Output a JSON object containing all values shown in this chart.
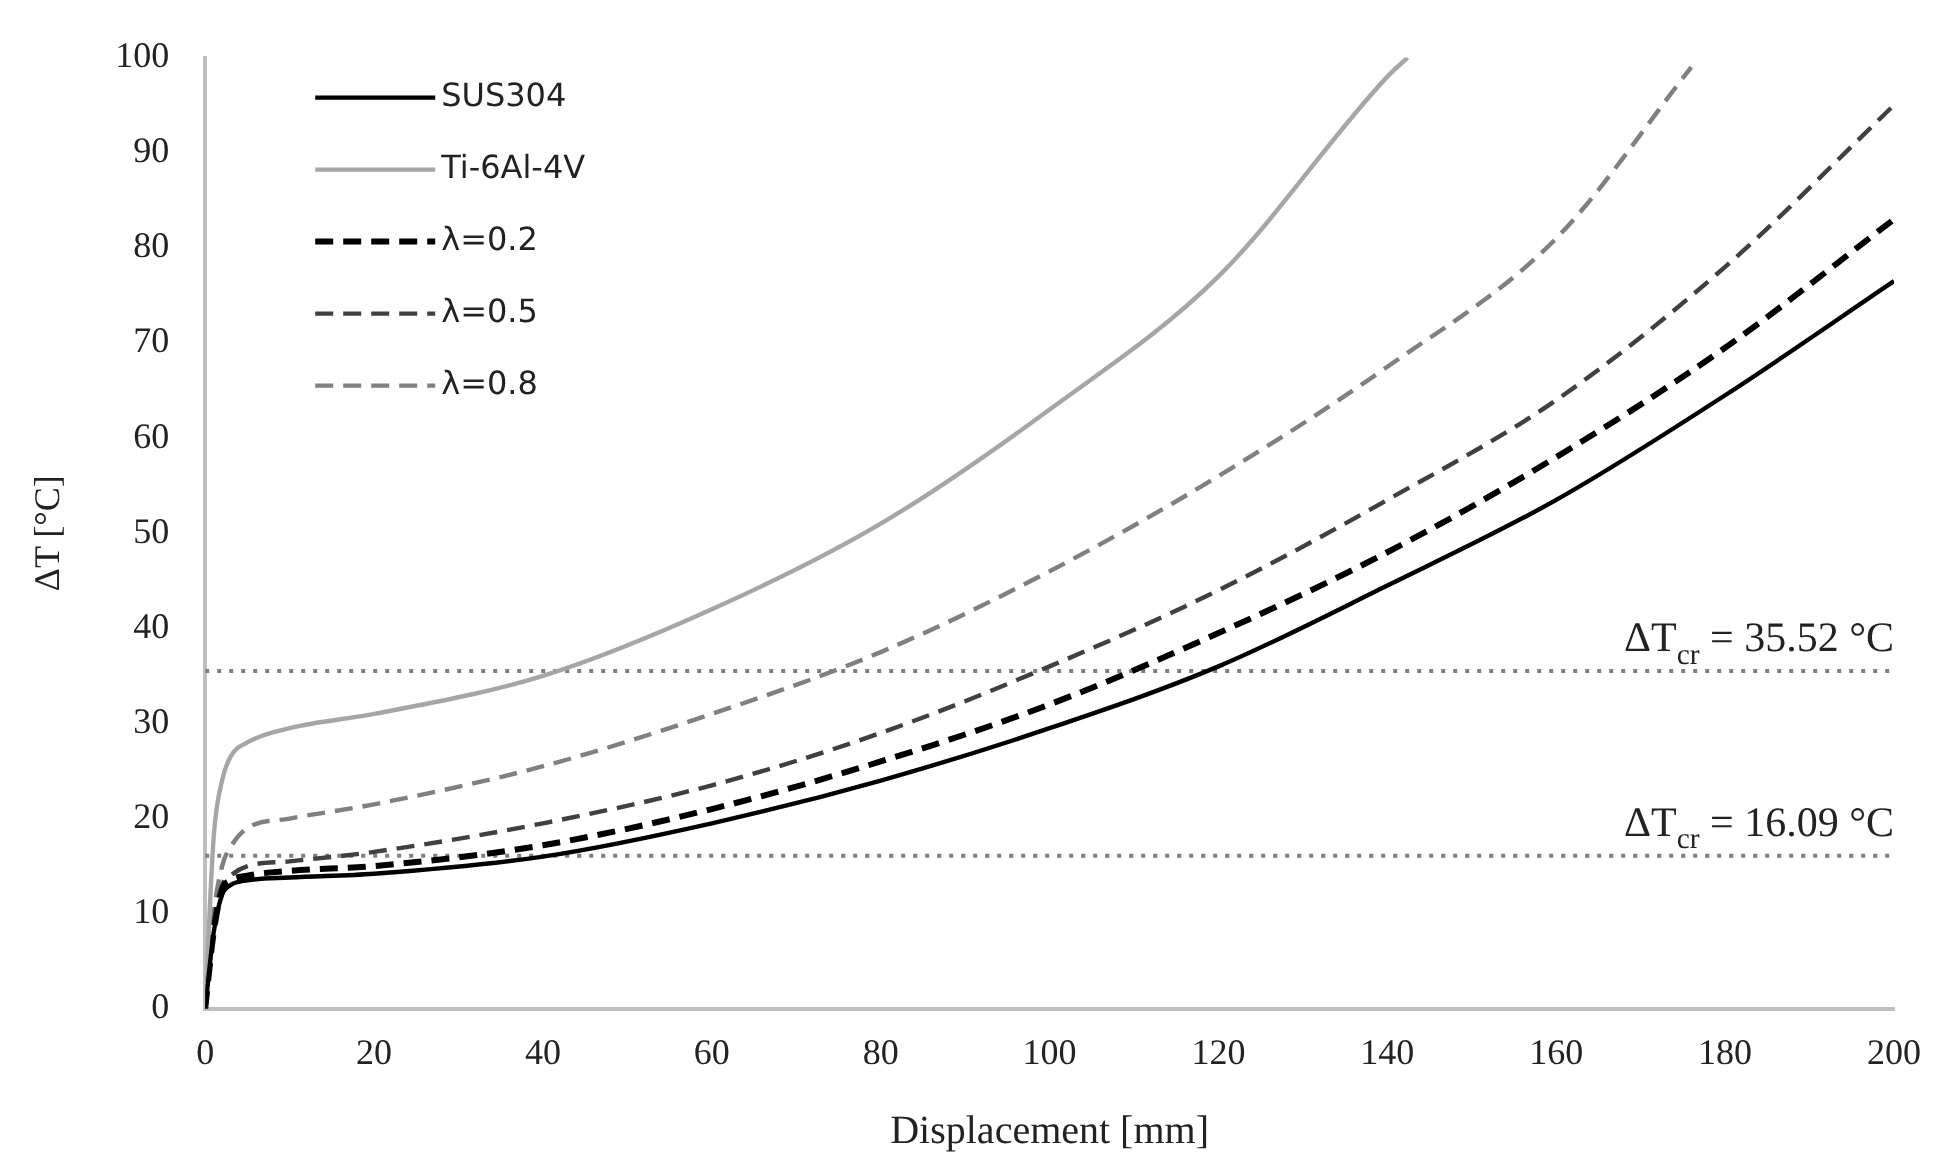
{
  "chart_data": {
    "type": "line",
    "xlabel": "Displacement [mm]",
    "ylabel": "ΔT [°C]",
    "xlim": [
      0,
      200
    ],
    "xticks": [
      0,
      20,
      40,
      60,
      80,
      100,
      120,
      140,
      160,
      180,
      200
    ],
    "ylim": [
      0,
      100
    ],
    "yticks": [
      0,
      10,
      20,
      30,
      40,
      50,
      60,
      70,
      80,
      90,
      100
    ],
    "grid": false,
    "legend": "top left",
    "marker": "none",
    "series": [
      {
        "name": "SUS304",
        "color": "#000000",
        "line_style": "solid",
        "x": [
          0,
          1,
          2,
          3,
          5,
          10,
          20,
          40,
          60,
          80,
          100,
          120,
          140,
          160,
          180,
          200
        ],
        "values": [
          0,
          8,
          12,
          13,
          13.5,
          13.8,
          14.2,
          16,
          19.5,
          24,
          29.5,
          36,
          44.5,
          53.5,
          64.5,
          76.5
        ]
      },
      {
        "name": "Ti-6Al-4V",
        "color": "#a6a6a6",
        "line_style": "solid",
        "x": [
          0,
          1,
          2,
          3,
          5,
          10,
          20,
          40,
          60,
          80,
          100,
          120,
          140,
          142.4
        ],
        "values": [
          0,
          18,
          24,
          26.5,
          28,
          29.5,
          31,
          35,
          42,
          51,
          63,
          77,
          98,
          100
        ]
      },
      {
        "name": "λ=0.2",
        "color": "#000000",
        "line_style": "dashed",
        "x": [
          0,
          1,
          2,
          3,
          5,
          10,
          20,
          40,
          60,
          80,
          100,
          120,
          140,
          160,
          180,
          200
        ],
        "values": [
          0,
          8,
          12.5,
          13.5,
          14,
          14.5,
          15,
          17.2,
          21,
          26,
          32,
          39.5,
          48,
          58,
          69.5,
          83
        ]
      },
      {
        "name": "λ=0.5",
        "color": "#404040",
        "line_style": "dashed",
        "x": [
          0,
          1,
          2,
          3,
          5,
          10,
          20,
          40,
          60,
          80,
          100,
          120,
          140,
          160,
          180,
          200
        ],
        "values": [
          0,
          9,
          13,
          14,
          15,
          15.5,
          16.5,
          19.5,
          23.5,
          29,
          36,
          44,
          53.5,
          64,
          78,
          95
        ]
      },
      {
        "name": "λ=0.8",
        "color": "#808080",
        "line_style": "dashed",
        "x": [
          0,
          1,
          2,
          3,
          5,
          10,
          20,
          40,
          60,
          80,
          100,
          120,
          140,
          160,
          176
        ],
        "values": [
          0,
          10,
          15,
          17,
          19,
          20,
          21.5,
          25.5,
          31,
          37.5,
          46,
          56,
          67.5,
          81,
          99
        ]
      }
    ],
    "ref_lines": [
      {
        "axis": "y",
        "value": 35.52,
        "label": "ΔT$_{cr}$ = 35.52 °C",
        "color": "#7f7f7f",
        "line_style": "dotted"
      },
      {
        "axis": "y",
        "value": 16.09,
        "label": "ΔT$_{cr}$ = 16.09 °C",
        "color": "#7f7f7f",
        "line_style": "dotted"
      }
    ]
  }
}
